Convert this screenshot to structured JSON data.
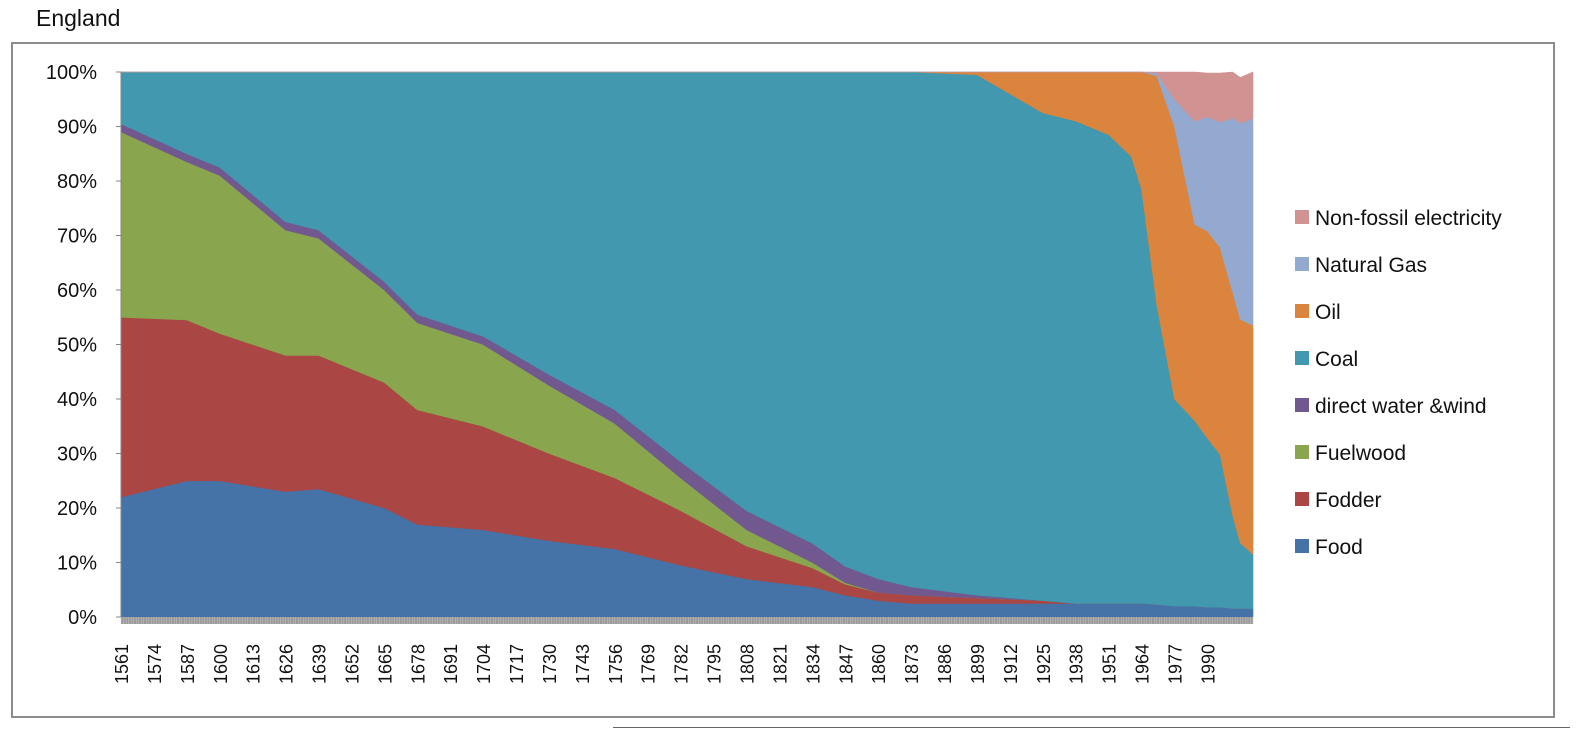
{
  "page": {
    "title": "England"
  },
  "chart_data": {
    "type": "area",
    "stacked": true,
    "normalized": true,
    "title": "England",
    "xlabel": "",
    "ylabel": "",
    "ylim": [
      0,
      100
    ],
    "yticks": [
      "0%",
      "10%",
      "20%",
      "30%",
      "40%",
      "50%",
      "60%",
      "70%",
      "80%",
      "90%",
      "100%"
    ],
    "xticks": [
      "1561",
      "1574",
      "1587",
      "1600",
      "1613",
      "1626",
      "1639",
      "1652",
      "1665",
      "1678",
      "1691",
      "1704",
      "1717",
      "1730",
      "1743",
      "1756",
      "1769",
      "1782",
      "1795",
      "1808",
      "1821",
      "1834",
      "1847",
      "1860",
      "1873",
      "1886",
      "1899",
      "1912",
      "1925",
      "1938",
      "1951",
      "1964",
      "1977",
      "1990"
    ],
    "x_range": [
      1561,
      2008
    ],
    "legend_position": "right",
    "x": [
      1561,
      1587,
      1600,
      1626,
      1639,
      1665,
      1678,
      1704,
      1730,
      1756,
      1782,
      1808,
      1834,
      1847,
      1860,
      1873,
      1899,
      1925,
      1938,
      1951,
      1960,
      1964,
      1970,
      1977,
      1985,
      1990,
      1995,
      2000,
      2003,
      2008
    ],
    "series": [
      {
        "name": "Food",
        "color": "#4572A7",
        "values": [
          22,
          25,
          25,
          23,
          23.5,
          20,
          17,
          16,
          14,
          12.5,
          9.5,
          7,
          5.5,
          4,
          3,
          2.5,
          2.5,
          2.5,
          2.5,
          2.5,
          2.5,
          2.5,
          2.3,
          2,
          2,
          1.8,
          1.8,
          1.6,
          1.6,
          1.5
        ]
      },
      {
        "name": "Fodder",
        "color": "#AA4643",
        "values": [
          33,
          29.5,
          27,
          25,
          24.5,
          23,
          21,
          19,
          16,
          13,
          10,
          6,
          3.5,
          2,
          1.5,
          1.5,
          1,
          0.5,
          0,
          0,
          0,
          0,
          0,
          0,
          0,
          0,
          0,
          0,
          0,
          0
        ]
      },
      {
        "name": "Fuelwood",
        "color": "#89A54E",
        "values": [
          34,
          29,
          29,
          23,
          21.5,
          17,
          16,
          15,
          12.5,
          10,
          6,
          3,
          1,
          0.3,
          0,
          0,
          0,
          0,
          0,
          0,
          0,
          0,
          0,
          0,
          0,
          0,
          0,
          0,
          0,
          0
        ]
      },
      {
        "name": "direct water &wind",
        "color": "#71588F",
        "values": [
          1.5,
          1.5,
          1.5,
          1.5,
          1.5,
          1.5,
          1.5,
          1.5,
          2,
          2.5,
          3,
          3.5,
          3.5,
          3,
          2.5,
          1.5,
          0.5,
          0,
          0,
          0,
          0,
          0,
          0,
          0,
          0,
          0,
          0,
          0,
          0,
          0
        ]
      },
      {
        "name": "Coal",
        "color": "#4198AF",
        "values": [
          9.5,
          15,
          17.5,
          27.5,
          29,
          38.5,
          44.5,
          48.5,
          55.5,
          62,
          71.5,
          80.5,
          86.5,
          90.7,
          93,
          94.5,
          95.5,
          89.5,
          88.5,
          86,
          82,
          76,
          55,
          38,
          34,
          31,
          28,
          17,
          12,
          10
        ]
      },
      {
        "name": "Oil",
        "color": "#DB843D",
        "values": [
          0,
          0,
          0,
          0,
          0,
          0,
          0,
          0,
          0,
          0,
          0,
          0,
          0,
          0,
          0,
          0,
          0.5,
          8,
          9,
          11.5,
          15.5,
          21.5,
          42,
          50,
          36,
          38,
          38,
          41,
          41,
          42
        ]
      },
      {
        "name": "Natural Gas",
        "color": "#93A9CF",
        "values": [
          0,
          0,
          0,
          0,
          0,
          0,
          0,
          0,
          0,
          0,
          0,
          0,
          0,
          0,
          0,
          0,
          0,
          0,
          0,
          0,
          0,
          0,
          0.5,
          5,
          19,
          21,
          23,
          32,
          36,
          38
        ]
      },
      {
        "name": "Non-fossil electricity",
        "color": "#D19392",
        "values": [
          0,
          0,
          0,
          0,
          0,
          0,
          0,
          0,
          0,
          0,
          0,
          0,
          0,
          0,
          0,
          0,
          0,
          0,
          0,
          0,
          0,
          0,
          0.2,
          5,
          9,
          8,
          9,
          8.4,
          8.4,
          8.5
        ]
      }
    ]
  }
}
